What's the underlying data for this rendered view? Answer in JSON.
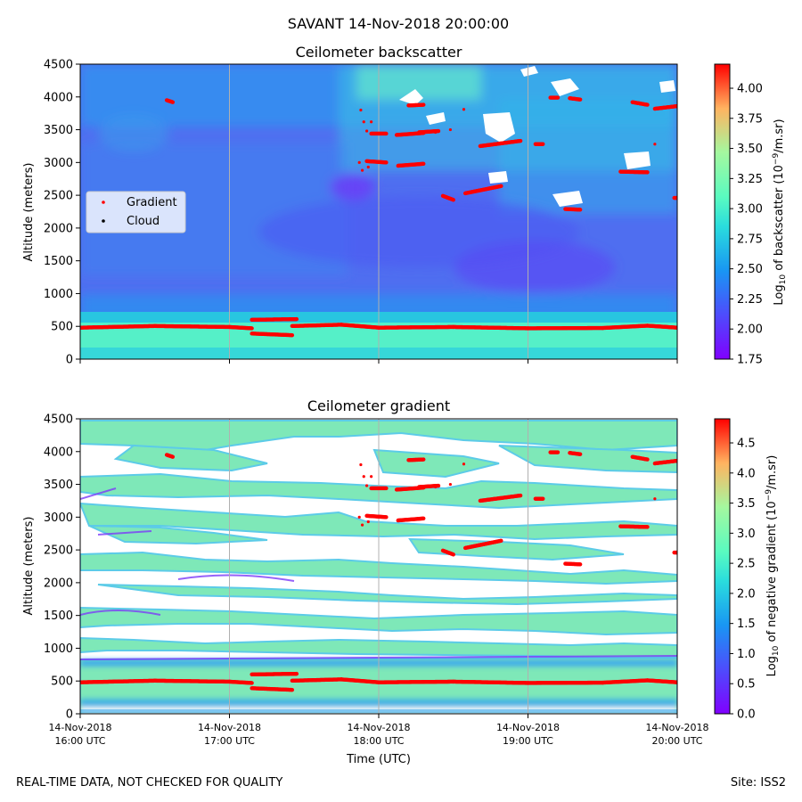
{
  "figure_title": "SAVANT 14-Nov-2018 20:00:00",
  "footer_left": "REAL-TIME DATA, NOT CHECKED FOR QUALITY",
  "footer_right": "Site: ISS2",
  "colors": {
    "gradient_marker": "#ff0000",
    "cloud_marker": "#000000",
    "grid": "#b0b0b0"
  },
  "chart_data": [
    {
      "type": "heatmap",
      "title": "Ceilometer backscatter",
      "xlabel": "",
      "ylabel": "Altitude (meters)",
      "ylim": [
        0,
        4500
      ],
      "yticks": [
        0,
        500,
        1000,
        1500,
        2000,
        2500,
        3000,
        3500,
        4000,
        4500
      ],
      "x_range_utc_hours": [
        16,
        20
      ],
      "xticks_utc_hours": [
        16,
        17,
        18,
        19,
        20
      ],
      "colorbar": {
        "label": "Log10 of backscatter (10^-9/m.sr)",
        "range": [
          1.75,
          4.2
        ],
        "ticks": [
          "1.75",
          "2.00",
          "2.25",
          "2.50",
          "2.75",
          "3.00",
          "3.25",
          "3.50",
          "3.75",
          "4.00"
        ]
      },
      "legend": {
        "position": "left",
        "entries": [
          "Gradient",
          "Cloud"
        ]
      }
    },
    {
      "type": "heatmap",
      "title": "Ceilometer gradient",
      "xlabel": "Time (UTC)",
      "ylabel": "Altitude (meters)",
      "ylim": [
        0,
        4500
      ],
      "yticks": [
        0,
        500,
        1000,
        1500,
        2000,
        2500,
        3000,
        3500,
        4000,
        4500
      ],
      "x_range_utc_hours": [
        16,
        20
      ],
      "xticks_utc_hours": [
        16,
        17,
        18,
        19,
        20
      ],
      "xtick_labels": [
        [
          "14-Nov-2018",
          "16:00 UTC"
        ],
        [
          "14-Nov-2018",
          "17:00 UTC"
        ],
        [
          "14-Nov-2018",
          "18:00 UTC"
        ],
        [
          "14-Nov-2018",
          "19:00 UTC"
        ],
        [
          "14-Nov-2018",
          "20:00 UTC"
        ]
      ],
      "colorbar": {
        "label": "Log10 of negative gradient (10^-9/m.sr)",
        "range": [
          0.0,
          4.9
        ],
        "ticks": [
          "0.0",
          "0.5",
          "1.0",
          "1.5",
          "2.0",
          "2.5",
          "3.0",
          "3.5",
          "4.0",
          "4.5"
        ]
      }
    }
  ],
  "gradient_layers": [
    {
      "name": "boundary-layer-top",
      "t": [
        16.0,
        16.5,
        17.0,
        17.15
      ],
      "z": [
        480,
        505,
        490,
        470
      ]
    },
    {
      "name": "boundary-layer-top",
      "t": [
        17.15,
        17.45
      ],
      "z": [
        600,
        610
      ]
    },
    {
      "name": "boundary-layer-top",
      "t": [
        17.15,
        17.42
      ],
      "z": [
        390,
        365
      ]
    },
    {
      "name": "boundary-layer-top",
      "t": [
        17.42,
        17.75,
        18.0,
        18.5,
        19.0,
        19.5,
        19.8,
        20.0
      ],
      "z": [
        505,
        525,
        480,
        490,
        470,
        475,
        510,
        480
      ]
    },
    {
      "name": "layer",
      "t": [
        16.58,
        16.62
      ],
      "z": [
        3950,
        3920
      ]
    },
    {
      "name": "layer",
      "t": [
        17.95,
        18.05
      ],
      "z": [
        3440,
        3440
      ]
    },
    {
      "name": "layer",
      "t": [
        17.92,
        18.05
      ],
      "z": [
        3020,
        3000
      ]
    },
    {
      "name": "layer",
      "t": [
        18.12,
        18.3
      ],
      "z": [
        3420,
        3450
      ]
    },
    {
      "name": "layer",
      "t": [
        18.27,
        18.4
      ],
      "z": [
        3460,
        3480
      ]
    },
    {
      "name": "layer",
      "t": [
        18.13,
        18.3
      ],
      "z": [
        2950,
        2980
      ]
    },
    {
      "name": "layer",
      "t": [
        18.2,
        18.3
      ],
      "z": [
        3870,
        3880
      ]
    },
    {
      "name": "layer",
      "t": [
        18.43,
        18.5
      ],
      "z": [
        2490,
        2430
      ]
    },
    {
      "name": "layer",
      "t": [
        18.58,
        18.82
      ],
      "z": [
        2530,
        2640
      ]
    },
    {
      "name": "layer",
      "t": [
        18.68,
        18.95
      ],
      "z": [
        3250,
        3330
      ]
    },
    {
      "name": "layer",
      "t": [
        19.05,
        19.1
      ],
      "z": [
        3280,
        3280
      ]
    },
    {
      "name": "layer",
      "t": [
        19.15,
        19.2
      ],
      "z": [
        3990,
        3990
      ]
    },
    {
      "name": "layer",
      "t": [
        19.25,
        19.35
      ],
      "z": [
        2290,
        2280
      ]
    },
    {
      "name": "layer",
      "t": [
        19.28,
        19.35
      ],
      "z": [
        3980,
        3960
      ]
    },
    {
      "name": "layer",
      "t": [
        19.62,
        19.8
      ],
      "z": [
        2860,
        2850
      ]
    },
    {
      "name": "layer",
      "t": [
        19.7,
        19.8
      ],
      "z": [
        3920,
        3880
      ]
    },
    {
      "name": "layer",
      "t": [
        19.85,
        20.0
      ],
      "z": [
        3820,
        3860
      ]
    },
    {
      "name": "layer",
      "t": [
        19.98,
        20.0
      ],
      "z": [
        2460,
        2460
      ]
    }
  ],
  "gradient_scatter": [
    {
      "t": [
        17.88,
        17.9,
        17.92,
        17.95,
        17.87,
        17.89,
        17.93,
        18.57,
        18.48,
        18.38,
        19.85
      ],
      "z": [
        3800,
        3620,
        3480,
        3620,
        3000,
        2880,
        2930,
        3810,
        3500,
        3460,
        3280
      ]
    }
  ]
}
